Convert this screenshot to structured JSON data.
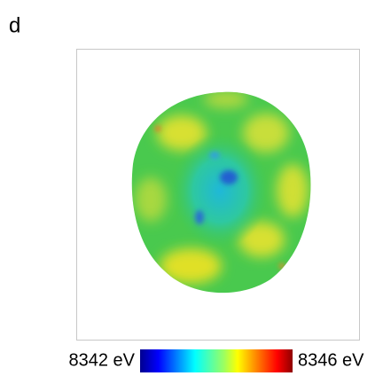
{
  "panel_label": "d",
  "colorbar": {
    "min_label": "8342 eV",
    "max_label": "8346 eV"
  }
}
